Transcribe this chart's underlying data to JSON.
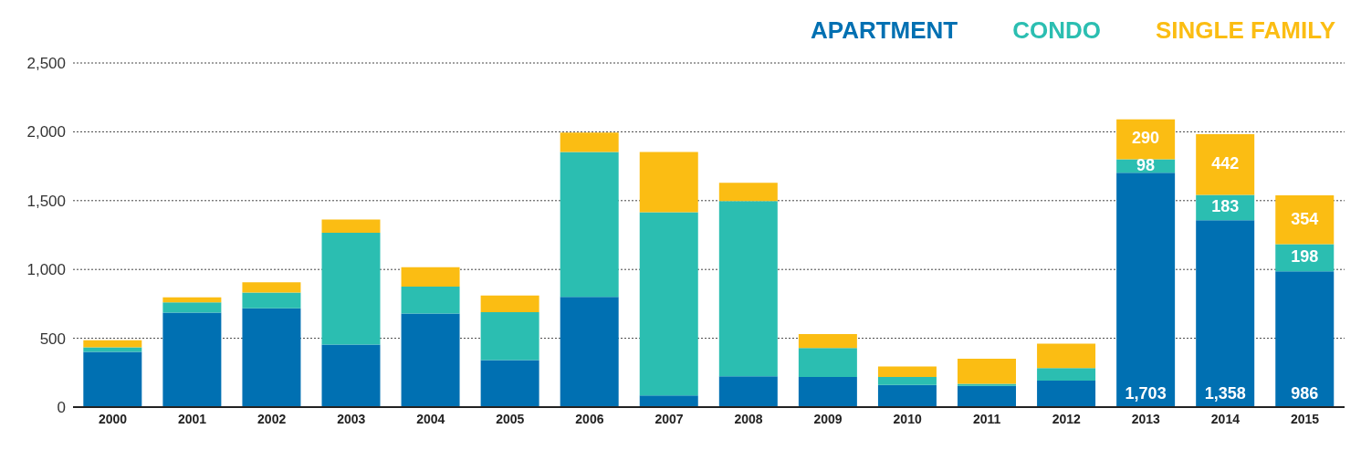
{
  "chart_data": {
    "type": "bar",
    "stacked": true,
    "categories": [
      "2000",
      "2001",
      "2002",
      "2003",
      "2004",
      "2005",
      "2006",
      "2007",
      "2008",
      "2009",
      "2010",
      "2011",
      "2012",
      "2013",
      "2014",
      "2015"
    ],
    "series": [
      {
        "name": "APARTMENT",
        "color": "#0070b2",
        "values": [
          402,
          686,
          718,
          455,
          679,
          341,
          800,
          85,
          224,
          219,
          160,
          155,
          193,
          1703,
          1358,
          986
        ],
        "value_labels": [
          null,
          null,
          null,
          null,
          null,
          null,
          null,
          null,
          null,
          null,
          null,
          null,
          null,
          "1,703",
          "1,358",
          "986"
        ]
      },
      {
        "name": "CONDO",
        "color": "#2bbeb1",
        "values": [
          32,
          75,
          114,
          811,
          196,
          349,
          1054,
          1330,
          1273,
          211,
          59,
          14,
          90,
          98,
          183,
          198
        ],
        "value_labels": [
          null,
          null,
          null,
          null,
          null,
          null,
          null,
          null,
          null,
          null,
          null,
          null,
          null,
          "98",
          "183",
          "198"
        ]
      },
      {
        "name": "SINGLE FAMILY",
        "color": "#fbbd13",
        "values": [
          51,
          37,
          75,
          96,
          142,
          121,
          141,
          439,
          133,
          100,
          76,
          183,
          178,
          290,
          442,
          354
        ],
        "value_labels": [
          null,
          null,
          null,
          null,
          null,
          null,
          null,
          null,
          null,
          null,
          null,
          null,
          null,
          "290",
          "442",
          "354"
        ]
      }
    ],
    "ylim": [
      0,
      2500
    ],
    "yticks": [
      0,
      500,
      {
        "value": 1000,
        "label": "1,000"
      },
      {
        "value": 1500,
        "label": "1,500"
      },
      {
        "value": 2000,
        "label": "2,000"
      },
      {
        "value": 2500,
        "label": "2,500"
      }
    ],
    "grid": "y",
    "legend": "top right"
  }
}
